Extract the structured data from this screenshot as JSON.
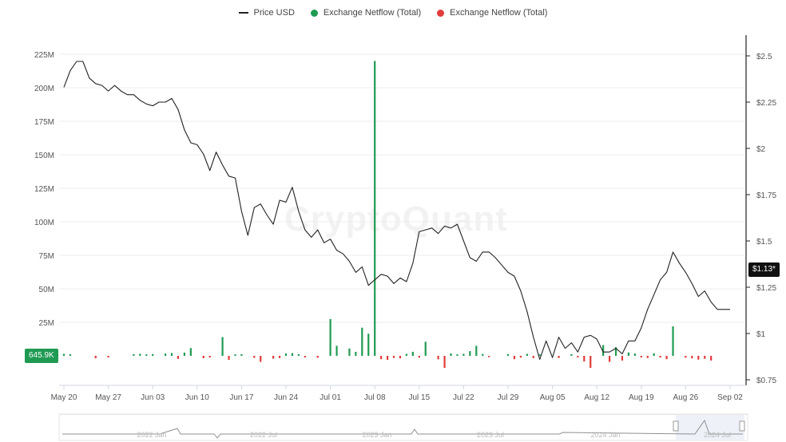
{
  "legend": {
    "price_label": "Price USD",
    "inflow_label": "Exchange Netflow (Total)",
    "outflow_label": "Exchange Netflow (Total)"
  },
  "colors": {
    "price": "#222222",
    "positive": "#1f9a52",
    "negative": "#e23b3b",
    "grid": "#ececec",
    "axis": "#222222"
  },
  "watermark": "CryptoQuant",
  "badges": {
    "netflow_current": "645.9K",
    "price_current": "$1.13*"
  },
  "navigator_labels": [
    "2022 Jan",
    "2022 Jul",
    "2023 Jan",
    "2023 Jul",
    "2024 Jan",
    "2024 Jul"
  ],
  "chart_data": {
    "type": "line+bar",
    "x_ticks": [
      "May 20",
      "May 27",
      "Jun 03",
      "Jun 10",
      "Jun 17",
      "Jun 24",
      "Jul 01",
      "Jul 08",
      "Jul 15",
      "Jul 22",
      "Jul 29",
      "Aug 05",
      "Aug 12",
      "Aug 19",
      "Aug 26",
      "Sep 02"
    ],
    "left_axis": {
      "ticks": [
        "225M",
        "200M",
        "175M",
        "150M",
        "125M",
        "100M",
        "75M",
        "50M",
        "25M"
      ],
      "ylim": [
        0,
        225000000
      ]
    },
    "right_axis": {
      "ticks": [
        "$2.5",
        "$2.25",
        "$2",
        "$1.75",
        "$1.5",
        "$1.25",
        "$1",
        "$0.75"
      ],
      "ylim": [
        0.75,
        2.5
      ]
    },
    "price_series": {
      "name": "Price USD",
      "day_index": [
        0,
        1,
        2,
        3,
        4,
        5,
        6,
        7,
        8,
        9,
        10,
        11,
        12,
        13,
        14,
        15,
        16,
        17,
        18,
        19,
        20,
        21,
        22,
        23,
        24,
        25,
        26,
        27,
        28,
        29,
        30,
        31,
        32,
        33,
        34,
        35,
        36,
        37,
        38,
        39,
        40,
        41,
        42,
        43,
        44,
        45,
        46,
        47,
        48,
        49,
        50,
        51,
        52,
        53,
        54,
        55,
        56,
        57,
        58,
        59,
        60,
        61,
        62,
        63,
        64,
        65,
        66,
        67,
        68,
        69,
        70,
        71,
        72,
        73,
        74,
        75,
        76,
        77,
        78,
        79,
        80,
        81,
        82,
        83,
        84,
        85,
        86,
        87,
        88,
        89,
        90,
        91,
        92,
        93,
        94,
        95,
        96,
        97,
        98,
        99,
        100,
        101,
        102,
        103,
        104,
        105
      ],
      "values": [
        2.33,
        2.42,
        2.47,
        2.47,
        2.38,
        2.35,
        2.34,
        2.31,
        2.34,
        2.31,
        2.29,
        2.29,
        2.26,
        2.24,
        2.23,
        2.25,
        2.25,
        2.27,
        2.21,
        2.1,
        2.03,
        2.02,
        1.97,
        1.88,
        1.98,
        1.91,
        1.85,
        1.84,
        1.66,
        1.53,
        1.68,
        1.7,
        1.64,
        1.59,
        1.72,
        1.71,
        1.79,
        1.66,
        1.56,
        1.52,
        1.56,
        1.49,
        1.51,
        1.45,
        1.43,
        1.39,
        1.33,
        1.36,
        1.26,
        1.29,
        1.32,
        1.31,
        1.27,
        1.3,
        1.28,
        1.38,
        1.55,
        1.56,
        1.57,
        1.54,
        1.58,
        1.57,
        1.59,
        1.5,
        1.41,
        1.39,
        1.44,
        1.44,
        1.41,
        1.37,
        1.33,
        1.31,
        1.23,
        1.12,
        0.98,
        0.86,
        0.96,
        0.87,
        0.98,
        0.92,
        0.95,
        0.9,
        0.98,
        0.99,
        0.97,
        0.9,
        0.9,
        0.92,
        0.89,
        0.96,
        0.96,
        1.03,
        1.13,
        1.21,
        1.29,
        1.33,
        1.44,
        1.38,
        1.33,
        1.27,
        1.2,
        1.23,
        1.17,
        1.13,
        1.13,
        1.13
      ]
    },
    "netflow_series": {
      "name": "Exchange Netflow (Total)",
      "day_index": [
        0,
        1,
        5,
        7,
        11,
        12,
        13,
        14,
        16,
        17,
        18,
        19,
        20,
        22,
        23,
        25,
        26,
        27,
        28,
        30,
        31,
        33,
        34,
        35,
        36,
        37,
        38,
        40,
        42,
        43,
        45,
        46,
        47,
        48,
        49,
        50,
        51,
        52,
        53,
        54,
        55,
        56,
        57,
        59,
        60,
        61,
        62,
        63,
        64,
        65,
        66,
        67,
        70,
        71,
        72,
        73,
        74,
        75,
        78,
        80,
        81,
        82,
        83,
        85,
        86,
        87,
        88,
        89,
        90,
        91,
        92,
        93,
        94,
        95,
        96,
        98,
        99,
        100,
        101,
        102
      ],
      "values": [
        1500000,
        1200000,
        -1800000,
        -1200000,
        1200000,
        1500000,
        1100000,
        1300000,
        1700000,
        2100000,
        -2300000,
        2400000,
        5800000,
        -1800000,
        -1300000,
        14000000,
        -3000000,
        1100000,
        1200000,
        -1500000,
        -4500000,
        -2100000,
        -1700000,
        1800000,
        2000000,
        1200000,
        -1200000,
        -1400000,
        27500000,
        7500000,
        5500000,
        3000000,
        21000000,
        16500000,
        220000000,
        -2500000,
        -3000000,
        -1600000,
        -1900000,
        1500000,
        3000000,
        -1400000,
        10500000,
        -2600000,
        -9000000,
        1800000,
        1100000,
        1500000,
        3500000,
        7500000,
        1400000,
        -1000000,
        1300000,
        -2500000,
        -1300000,
        1500000,
        -1700000,
        1100000,
        -1600000,
        1200000,
        -1200000,
        -4200000,
        -9000000,
        8000000,
        -4500000,
        6500000,
        -3500000,
        2500000,
        1700000,
        -1200000,
        -1600000,
        1900000,
        -1300000,
        -2500000,
        22000000,
        -1400000,
        -1900000,
        -2800000,
        -2200000,
        -3500000
      ]
    }
  }
}
